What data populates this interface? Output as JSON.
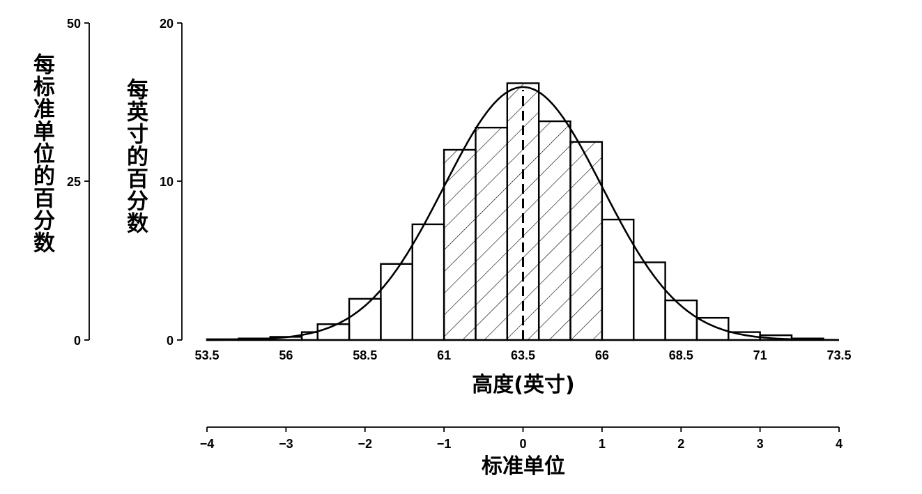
{
  "chart_data": {
    "type": "bar",
    "subtype": "histogram-with-normal-curve",
    "xlabel": "高度(英寸)",
    "ylabel_left": "每标准单位的百分数",
    "ylabel_right": "每英寸的百分数",
    "second_xlabel": "标准单位",
    "x_ticks": [
      "53.5",
      "56",
      "58.5",
      "61",
      "63.5",
      "66",
      "68.5",
      "71",
      "73.5"
    ],
    "x_range": [
      53.5,
      73.5
    ],
    "y_ticks": [
      "0",
      "10",
      "20"
    ],
    "y_range": [
      0,
      20
    ],
    "y2_ticks": [
      "0",
      "25",
      "50"
    ],
    "y2_range": [
      0,
      50
    ],
    "su_ticks": [
      "−4",
      "−3",
      "−2",
      "−1",
      "0",
      "1",
      "2",
      "3",
      "4"
    ],
    "su_range": [
      -4,
      4
    ],
    "mean": 63.5,
    "sd": 2.5,
    "shaded_range": [
      61,
      66
    ],
    "grid": false,
    "legend": "none",
    "bins": [
      {
        "x0": 53.5,
        "x1": 54.5,
        "y": 0.05
      },
      {
        "x0": 54.5,
        "x1": 55.5,
        "y": 0.1
      },
      {
        "x0": 55.5,
        "x1": 56.5,
        "y": 0.2
      },
      {
        "x0": 56.5,
        "x1": 57.0,
        "y": 0.5
      },
      {
        "x0": 57.0,
        "x1": 58.0,
        "y": 1.0
      },
      {
        "x0": 58.0,
        "x1": 59.0,
        "y": 2.6
      },
      {
        "x0": 59.0,
        "x1": 60.0,
        "y": 4.8
      },
      {
        "x0": 60.0,
        "x1": 61.0,
        "y": 7.3
      },
      {
        "x0": 61.0,
        "x1": 62.0,
        "y": 12.0
      },
      {
        "x0": 62.0,
        "x1": 63.0,
        "y": 13.4
      },
      {
        "x0": 63.0,
        "x1": 64.0,
        "y": 16.2
      },
      {
        "x0": 64.0,
        "x1": 65.0,
        "y": 13.8
      },
      {
        "x0": 65.0,
        "x1": 66.0,
        "y": 12.5
      },
      {
        "x0": 66.0,
        "x1": 67.0,
        "y": 7.6
      },
      {
        "x0": 67.0,
        "x1": 68.0,
        "y": 4.9
      },
      {
        "x0": 68.0,
        "x1": 69.0,
        "y": 2.5
      },
      {
        "x0": 69.0,
        "x1": 70.0,
        "y": 1.4
      },
      {
        "x0": 70.0,
        "x1": 71.0,
        "y": 0.5
      },
      {
        "x0": 71.0,
        "x1": 72.0,
        "y": 0.3
      },
      {
        "x0": 72.0,
        "x1": 73.0,
        "y": 0.1
      }
    ]
  }
}
